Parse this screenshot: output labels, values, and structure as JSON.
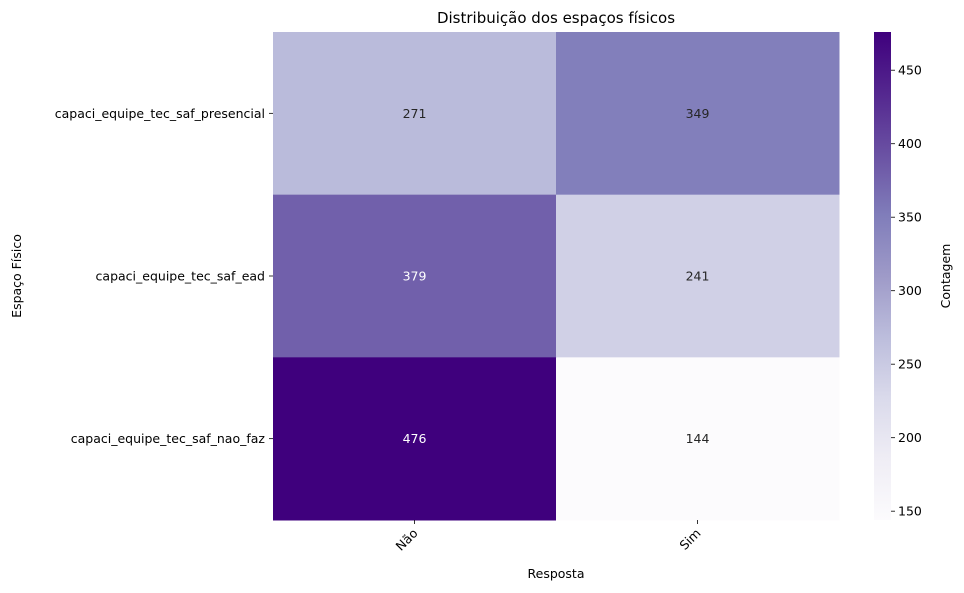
{
  "chart_data": {
    "type": "heatmap",
    "title": "Distribuição dos espaços físicos",
    "xlabel": "Resposta",
    "ylabel": "Espaço Físico",
    "x_categories": [
      "Não",
      "Sim"
    ],
    "y_categories": [
      "capaci_equipe_tec_saf_presencial",
      "capaci_equipe_tec_saf_ead",
      "capaci_equipe_tec_saf_nao_faz"
    ],
    "values": [
      [
        271,
        349
      ],
      [
        379,
        241
      ],
      [
        476,
        144
      ]
    ],
    "colorbar": {
      "label": "Contagem",
      "min": 144,
      "max": 476,
      "ticks": [
        150,
        200,
        250,
        300,
        350,
        400,
        450
      ],
      "colormap": "Purples"
    }
  }
}
